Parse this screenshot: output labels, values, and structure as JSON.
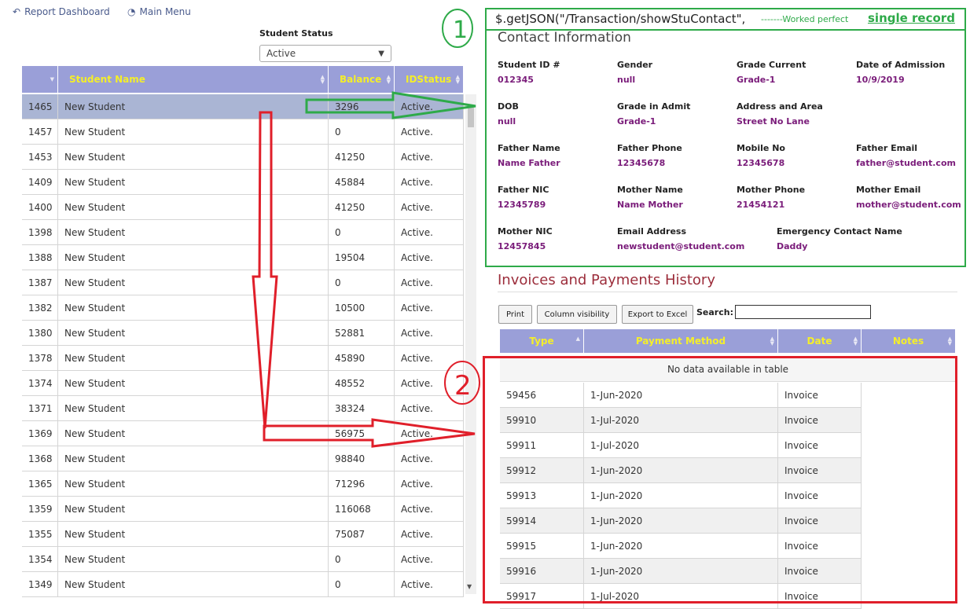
{
  "nav": {
    "report_dashboard": "Report Dashboard",
    "main_menu": "Main Menu"
  },
  "filter": {
    "label": "Student Status",
    "selected": "Active"
  },
  "students_table": {
    "headers": [
      "",
      "Student Name",
      "Balance",
      "IDStatus"
    ],
    "rows": [
      [
        "1465",
        "New Student",
        "3296",
        "Active."
      ],
      [
        "1457",
        "New Student",
        "0",
        "Active."
      ],
      [
        "1453",
        "New Student",
        "41250",
        "Active."
      ],
      [
        "1409",
        "New Student",
        "45884",
        "Active."
      ],
      [
        "1400",
        "New Student",
        "41250",
        "Active."
      ],
      [
        "1398",
        "New Student",
        "0",
        "Active."
      ],
      [
        "1388",
        "New Student",
        "19504",
        "Active."
      ],
      [
        "1387",
        "New Student",
        "0",
        "Active."
      ],
      [
        "1382",
        "New Student",
        "10500",
        "Active."
      ],
      [
        "1380",
        "New Student",
        "52881",
        "Active."
      ],
      [
        "1378",
        "New Student",
        "45890",
        "Active."
      ],
      [
        "1374",
        "New Student",
        "48552",
        "Active."
      ],
      [
        "1371",
        "New Student",
        "38324",
        "Active."
      ],
      [
        "1369",
        "New Student",
        "56975",
        "Active."
      ],
      [
        "1368",
        "New Student",
        "98840",
        "Active."
      ],
      [
        "1365",
        "New Student",
        "71296",
        "Active."
      ],
      [
        "1359",
        "New Student",
        "116068",
        "Active."
      ],
      [
        "1355",
        "New Student",
        "75087",
        "Active."
      ],
      [
        "1354",
        "New Student",
        "0",
        "Active."
      ],
      [
        "1349",
        "New Student",
        "0",
        "Active."
      ]
    ]
  },
  "annotations": {
    "code": "$.getJSON(\"/Transaction/showStuContact\",",
    "worked": "-------Worked perfect",
    "single": "single record",
    "num1": "1",
    "num2": "2",
    "green": "#2eaa49",
    "red": "#e01f2a"
  },
  "contact": {
    "title": "Contact Information",
    "fields": [
      {
        "label": "Student ID #",
        "value": "012345"
      },
      {
        "label": "Gender",
        "value": "null"
      },
      {
        "label": "Grade Current",
        "value": "Grade-1"
      },
      {
        "label": "Date of Admission",
        "value": "10/9/2019"
      },
      {
        "label": "DOB",
        "value": "null"
      },
      {
        "label": "Grade in Admit",
        "value": "Grade-1"
      },
      {
        "label": "Address and Area",
        "value": "Street No Lane"
      },
      {
        "label": "Father Name",
        "value": "Name Father"
      },
      {
        "label": "Father Phone",
        "value": "12345678"
      },
      {
        "label": "Mobile No",
        "value": "12345678"
      },
      {
        "label": "Father Email",
        "value": "father@student.com"
      },
      {
        "label": "Father NIC",
        "value": "12345789"
      },
      {
        "label": "Mother Name",
        "value": "Name Mother"
      },
      {
        "label": "Mother Phone",
        "value": "21454121"
      },
      {
        "label": "Mother Email",
        "value": "mother@student.com"
      },
      {
        "label": "Mother NIC",
        "value": "12457845"
      },
      {
        "label": "Email Address",
        "value": "newstudent@student.com"
      },
      {
        "label": "Emergency Contact Name",
        "value": "Daddy"
      }
    ]
  },
  "invoices": {
    "title": "Invoices and Payments History",
    "buttons": {
      "print": "Print",
      "colvis": "Column visibility",
      "export": "Export to Excel"
    },
    "search_label": "Search:",
    "search_value": "",
    "headers": [
      "Type",
      "Payment Method",
      "Date",
      "Notes"
    ],
    "no_data": "No data available in table",
    "rows": [
      [
        "59456",
        "1-Jun-2020",
        "Invoice"
      ],
      [
        "59910",
        "1-Jul-2020",
        "Invoice"
      ],
      [
        "59911",
        "1-Jul-2020",
        "Invoice"
      ],
      [
        "59912",
        "1-Jun-2020",
        "Invoice"
      ],
      [
        "59913",
        "1-Jun-2020",
        "Invoice"
      ],
      [
        "59914",
        "1-Jun-2020",
        "Invoice"
      ],
      [
        "59915",
        "1-Jun-2020",
        "Invoice"
      ],
      [
        "59916",
        "1-Jun-2020",
        "Invoice"
      ],
      [
        "59917",
        "1-Jul-2020",
        "Invoice"
      ]
    ]
  }
}
